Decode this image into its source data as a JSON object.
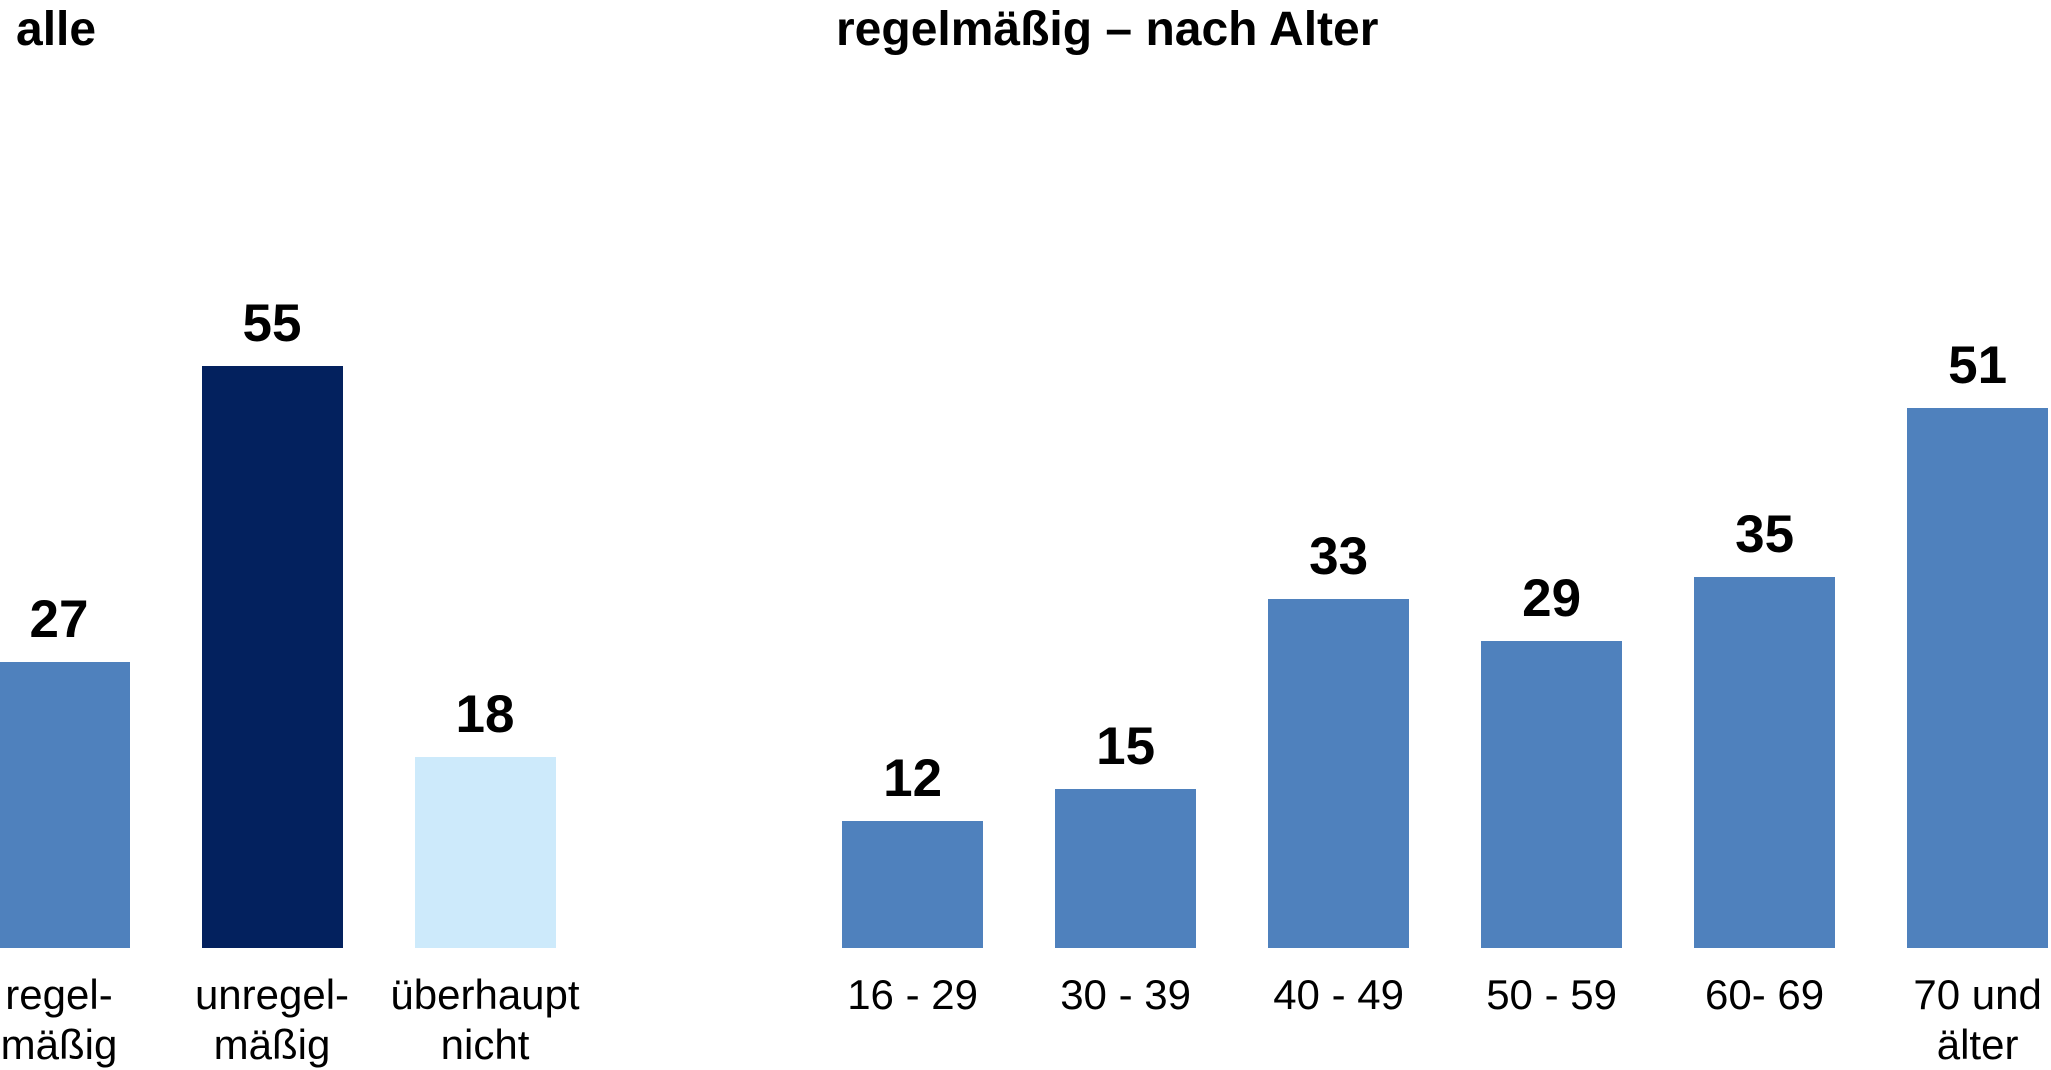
{
  "chart_data": [
    {
      "type": "bar",
      "title": "alle",
      "categories": [
        "regel-\nmäßig",
        "unregel-\nmäßig",
        "überhaupt\nnicht"
      ],
      "values": [
        27,
        55,
        18
      ],
      "colors": [
        "#4f81bd",
        "#03215e",
        "#cdeafb"
      ]
    },
    {
      "type": "bar",
      "title": "regelmäßig – nach Alter",
      "categories": [
        "16 - 29",
        "30 - 39",
        "40 - 49",
        "50 - 59",
        "60- 69",
        "70 und\nälter"
      ],
      "values": [
        12,
        15,
        33,
        29,
        35,
        51
      ],
      "color": "#4f81bd"
    }
  ]
}
